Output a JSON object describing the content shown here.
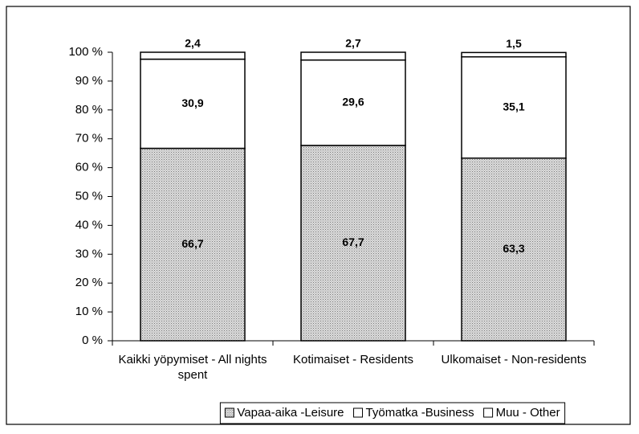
{
  "chart_data": {
    "type": "stacked_bar",
    "categories": [
      "Kaikki yöpymiset - All nights spent",
      "Kotimaiset - Residents",
      "Ulkomaiset - Non-residents"
    ],
    "series": [
      {
        "name": "Vapaa-aika -Leisure",
        "color": "#c4c4c4",
        "values": [
          66.7,
          67.7,
          63.3
        ],
        "value_labels": [
          "66,7",
          "67,7",
          "63,3"
        ]
      },
      {
        "name": "Työmatka -Business",
        "color": "#ffffff",
        "values": [
          30.9,
          29.6,
          35.1
        ],
        "value_labels": [
          "30,9",
          "29,6",
          "35,1"
        ]
      },
      {
        "name": "Muu - Other",
        "color": "#ffffff",
        "values": [
          2.4,
          2.7,
          1.5
        ],
        "value_labels": [
          "2,4",
          "2,7",
          "1,5"
        ]
      }
    ],
    "ylim": [
      0,
      100
    ],
    "yticks": [
      {
        "value": 0,
        "label": "0 %"
      },
      {
        "value": 10,
        "label": "10 %"
      },
      {
        "value": 20,
        "label": "20 %"
      },
      {
        "value": 30,
        "label": "30 %"
      },
      {
        "value": 40,
        "label": "40 %"
      },
      {
        "value": 50,
        "label": "50 %"
      },
      {
        "value": 60,
        "label": "60 %"
      },
      {
        "value": 70,
        "label": "70 %"
      },
      {
        "value": 80,
        "label": "80 %"
      },
      {
        "value": 90,
        "label": "90 %"
      },
      {
        "value": 100,
        "label": "100 %"
      }
    ],
    "legend": "bottom"
  }
}
